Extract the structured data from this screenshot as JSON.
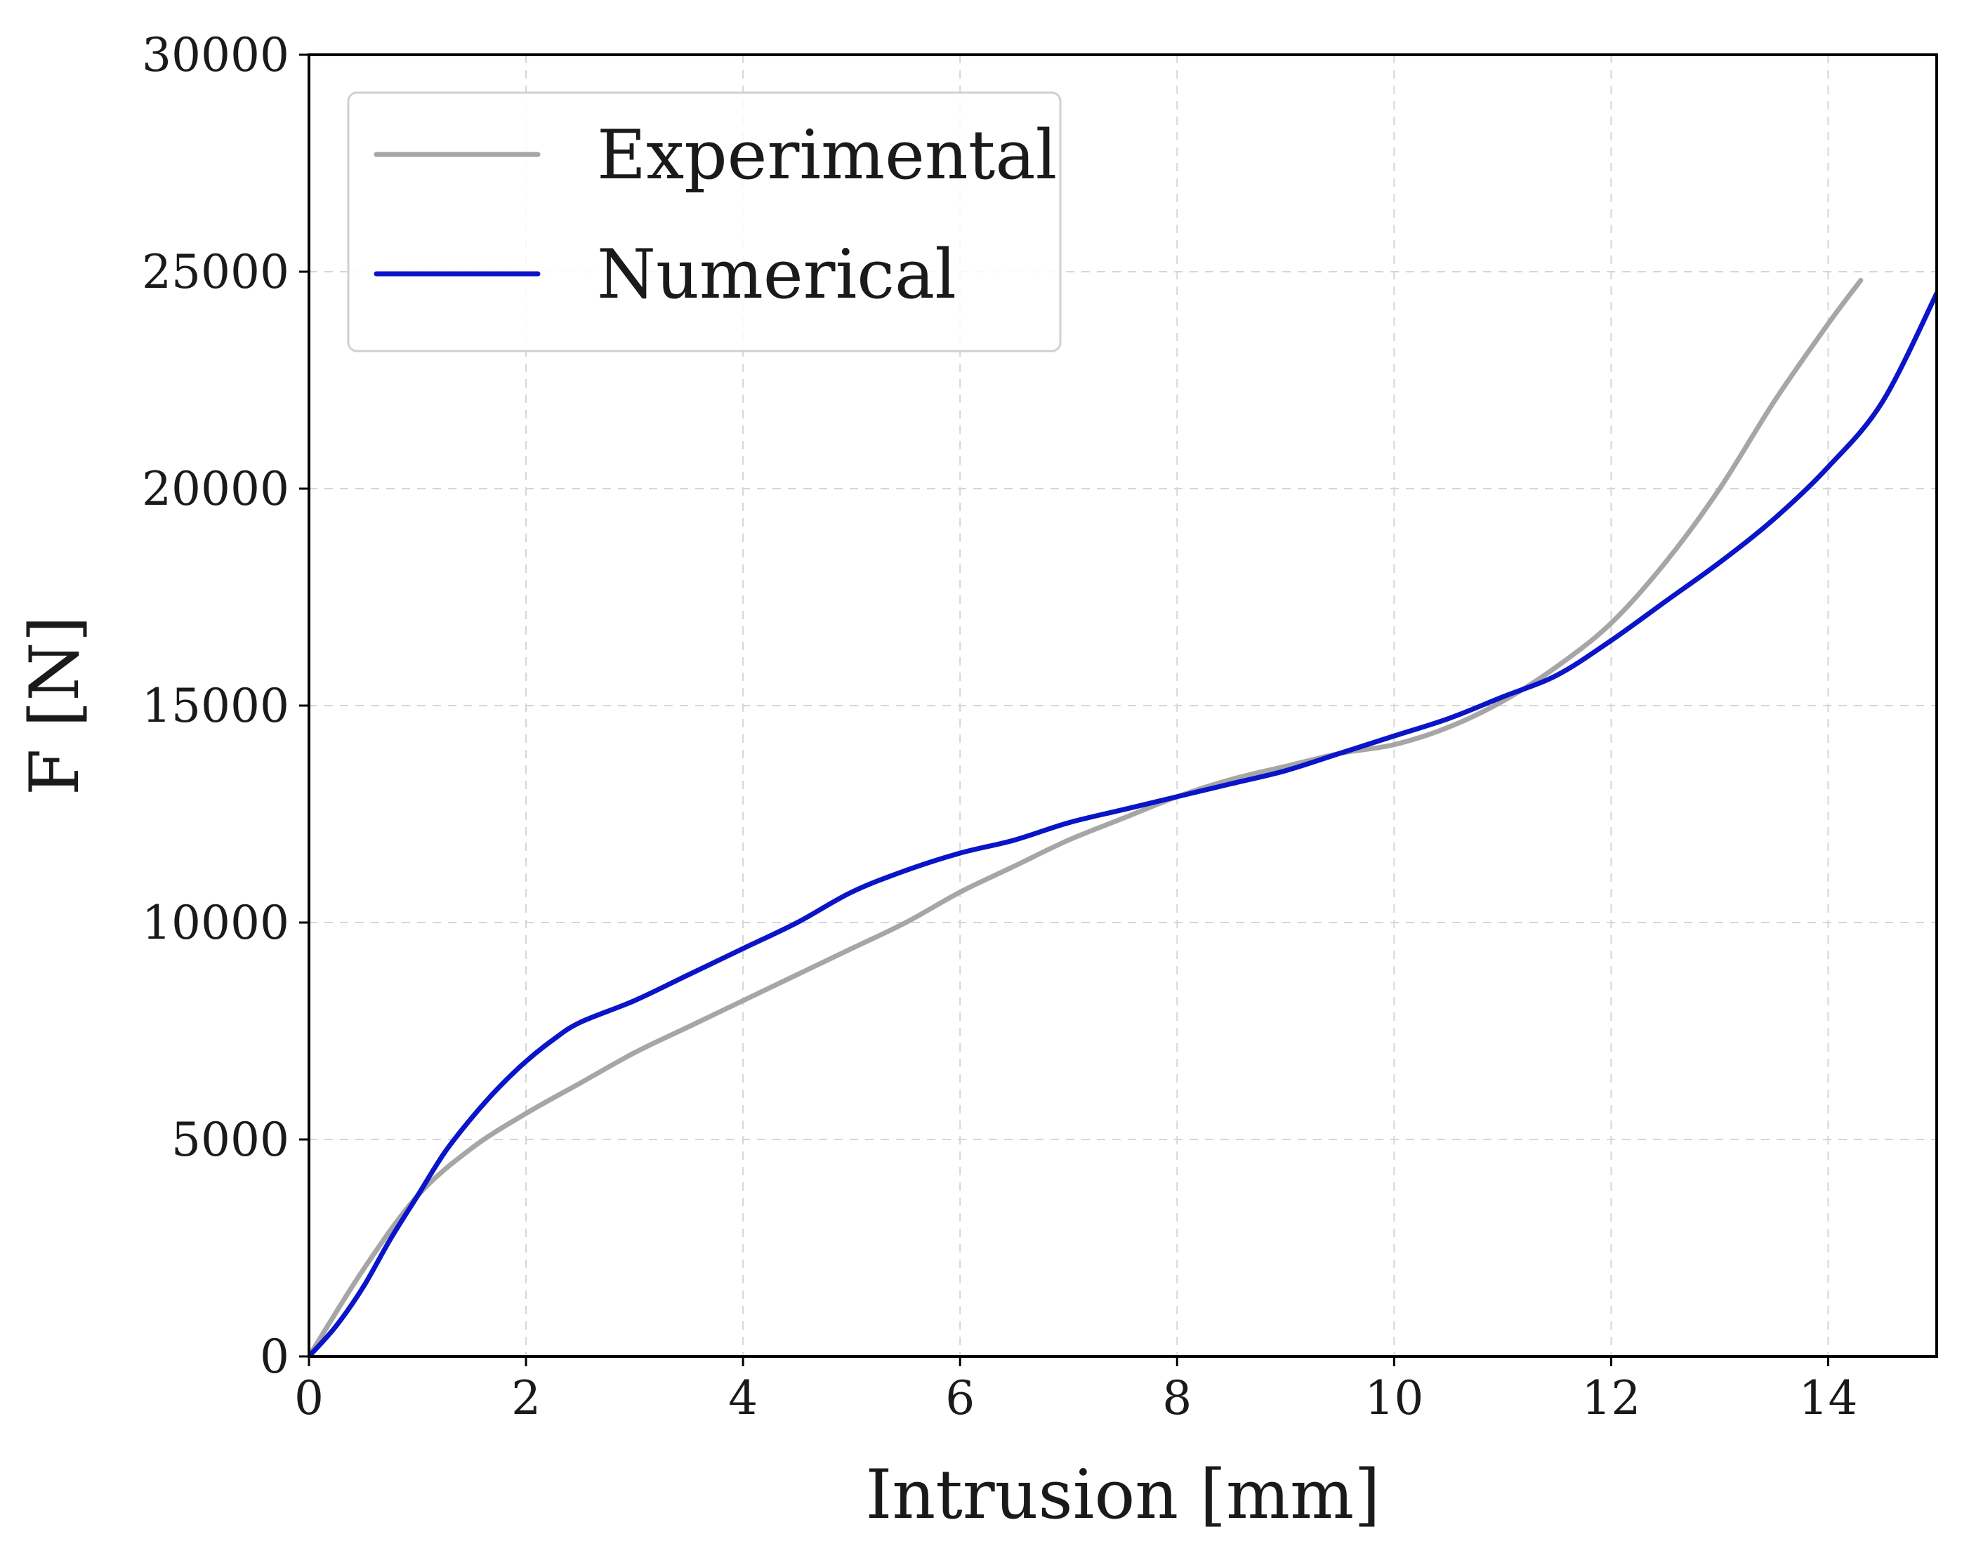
{
  "chart_data": {
    "type": "line",
    "title": "",
    "xlabel": "Intrusion [mm]",
    "ylabel": "F [N]",
    "xlim": [
      0,
      15
    ],
    "ylim": [
      0,
      30000
    ],
    "xticks": [
      0,
      2,
      4,
      6,
      8,
      10,
      12,
      14
    ],
    "yticks": [
      0,
      5000,
      10000,
      15000,
      20000,
      25000,
      30000
    ],
    "grid": true,
    "legend_position": "top-left",
    "series": [
      {
        "name": "Experimental",
        "color": "#a6a6a6",
        "x": [
          0,
          0.5,
          1,
          1.5,
          2,
          2.5,
          3,
          3.5,
          4,
          4.5,
          5,
          5.5,
          6,
          6.5,
          7,
          7.5,
          8,
          8.5,
          9,
          9.5,
          10,
          10.5,
          11,
          11.5,
          12,
          12.5,
          13,
          13.5,
          14,
          14.3
        ],
        "y": [
          0,
          2000,
          3700,
          4800,
          5600,
          6300,
          7000,
          7600,
          8200,
          8800,
          9400,
          10000,
          10700,
          11300,
          11900,
          12400,
          12900,
          13300,
          13600,
          13900,
          14100,
          14500,
          15100,
          15900,
          16900,
          18300,
          20000,
          22000,
          23800,
          24800
        ]
      },
      {
        "name": "Numerical",
        "color": "#0a14c8",
        "x": [
          0,
          0.25,
          0.5,
          0.75,
          1,
          1.25,
          1.5,
          1.75,
          2,
          2.25,
          2.5,
          3,
          3.5,
          4,
          4.5,
          5,
          5.5,
          6,
          6.5,
          7,
          7.5,
          8,
          8.5,
          9,
          9.5,
          10,
          10.5,
          11,
          11.5,
          12,
          12.5,
          13,
          13.5,
          14,
          14.5,
          15
        ],
        "y": [
          0,
          700,
          1600,
          2700,
          3700,
          4700,
          5500,
          6200,
          6800,
          7300,
          7700,
          8200,
          8800,
          9400,
          10000,
          10700,
          11200,
          11600,
          11900,
          12300,
          12600,
          12900,
          13200,
          13500,
          13900,
          14300,
          14700,
          15200,
          15700,
          16500,
          17400,
          18300,
          19300,
          20500,
          22000,
          24500
        ]
      }
    ]
  }
}
